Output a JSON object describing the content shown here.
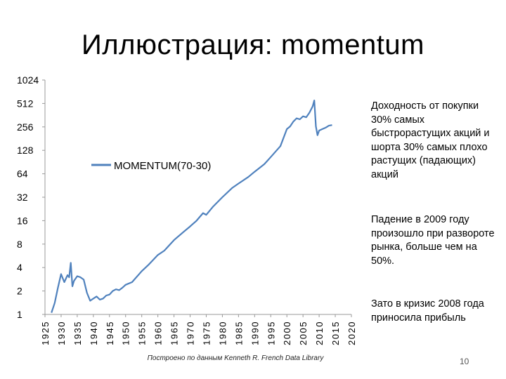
{
  "slide": {
    "title": "Иллюстрация: momentum",
    "credit": "Построено по данным Kenneth R. French Data Library",
    "page_number": "10",
    "bullets": [
      "Доходность от покупки 30% самых быстрорастущих акций и шорта 30% самых плохо растущих (падающих) акций",
      "Падение в 2009 году произошло при развороте рынка, больше чем на 50%.",
      "Зато в кризис 2008 года приносила прибыль"
    ]
  },
  "chart_data": {
    "type": "line",
    "y_scale": "log2",
    "ylim": [
      1,
      1024
    ],
    "xlim": [
      1925,
      2020
    ],
    "y_ticks": [
      "1",
      "2",
      "4",
      "8",
      "16",
      "32",
      "64",
      "128",
      "256",
      "512",
      "1024"
    ],
    "x_ticks": [
      "1925",
      "1930",
      "1935",
      "1940",
      "1945",
      "1950",
      "1955",
      "1960",
      "1965",
      "1970",
      "1975",
      "1980",
      "1985",
      "1990",
      "1995",
      "2000",
      "2005",
      "2010",
      "2015",
      "2020"
    ],
    "legend_position": "upper-left",
    "grid": false,
    "series": [
      {
        "name": "MOMENTUM(70-30)",
        "color": "#4f81bd",
        "x": [
          1927,
          1928,
          1929,
          1930,
          1931,
          1932,
          1932.5,
          1933,
          1933.5,
          1934,
          1935,
          1936,
          1937,
          1938,
          1939,
          1940,
          1941,
          1942,
          1943,
          1944,
          1945,
          1946,
          1947,
          1948,
          1949,
          1950,
          1952,
          1955,
          1957,
          1960,
          1962,
          1965,
          1968,
          1970,
          1972,
          1974,
          1975,
          1977,
          1980,
          1983,
          1985,
          1988,
          1990,
          1993,
          1995,
          1998,
          2000,
          2001,
          2002,
          2003,
          2004,
          2005,
          2006,
          2007,
          2008,
          2008.5,
          2009,
          2009.5,
          2010,
          2011,
          2012,
          2013,
          2014
        ],
        "y": [
          1.05,
          1.4,
          2.2,
          3.3,
          2.6,
          3.2,
          3.0,
          4.6,
          2.3,
          2.7,
          3.1,
          3.0,
          2.8,
          1.9,
          1.5,
          1.6,
          1.7,
          1.55,
          1.6,
          1.75,
          1.8,
          2.0,
          2.1,
          2.05,
          2.2,
          2.4,
          2.6,
          3.6,
          4.3,
          5.8,
          6.6,
          9.0,
          11.5,
          13.5,
          16.0,
          20.0,
          19.0,
          24.0,
          32.0,
          42.0,
          48.0,
          58.0,
          68.0,
          85.0,
          105.0,
          145.0,
          240.0,
          260.0,
          300.0,
          330.0,
          320.0,
          350.0,
          340.0,
          390.0,
          470.0,
          560.0,
          260.0,
          200.0,
          230.0,
          240.0,
          250.0,
          265.0,
          270.0
        ]
      }
    ]
  }
}
